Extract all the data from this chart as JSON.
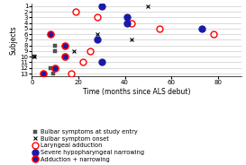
{
  "subjects": [
    1,
    2,
    3,
    4,
    5,
    6,
    7,
    8,
    9,
    10,
    11,
    12,
    13
  ],
  "xlim": [
    0,
    90
  ],
  "xlabel": "Time (months since ALS debut)",
  "ylabel": "Subjects",
  "grid_color": "#cccccc",
  "bulbar_study": [
    {
      "subj": 8,
      "t": 10
    },
    {
      "subj": 9,
      "t": 10
    },
    {
      "subj": 10,
      "t": 1
    },
    {
      "subj": 12,
      "t": 8
    },
    {
      "subj": 13,
      "t": 9
    }
  ],
  "bulbar_onset": [
    {
      "subj": 1,
      "t": 50
    },
    {
      "subj": 4,
      "t": 43
    },
    {
      "subj": 6,
      "t": 28
    },
    {
      "subj": 7,
      "t": 43
    },
    {
      "subj": 8,
      "t": 14
    },
    {
      "subj": 9,
      "t": 18
    },
    {
      "subj": 10,
      "t": 1
    }
  ],
  "laryngeal_adduction": [
    {
      "subj": 2,
      "t": 19
    },
    {
      "subj": 3,
      "t": 28
    },
    {
      "subj": 4,
      "t": 43
    },
    {
      "subj": 5,
      "t": 55
    },
    {
      "subj": 6,
      "t": 78
    },
    {
      "subj": 9,
      "t": 25
    },
    {
      "subj": 11,
      "t": 22
    },
    {
      "subj": 13,
      "t": 17
    }
  ],
  "severe_narrowing": [
    {
      "subj": 1,
      "t": 30
    },
    {
      "subj": 3,
      "t": 41
    },
    {
      "subj": 4,
      "t": 41
    },
    {
      "subj": 5,
      "t": 73
    },
    {
      "subj": 7,
      "t": 28
    },
    {
      "subj": 11,
      "t": 30
    }
  ],
  "adduction_narrowing": [
    {
      "subj": 6,
      "t": 8
    },
    {
      "subj": 8,
      "t": 14
    },
    {
      "subj": 10,
      "t": 14
    },
    {
      "subj": 12,
      "t": 10
    },
    {
      "subj": 13,
      "t": 5
    }
  ],
  "legend_labels": [
    "Bulbar symptoms at study entry",
    "Bulbar symptom onset",
    "Laryngeal adduction",
    "Severe hypopharyngeal narrowing",
    "Adduction + narrowing"
  ],
  "axis_fontsize": 5.5,
  "tick_fontsize": 5.0,
  "legend_fontsize": 4.8
}
